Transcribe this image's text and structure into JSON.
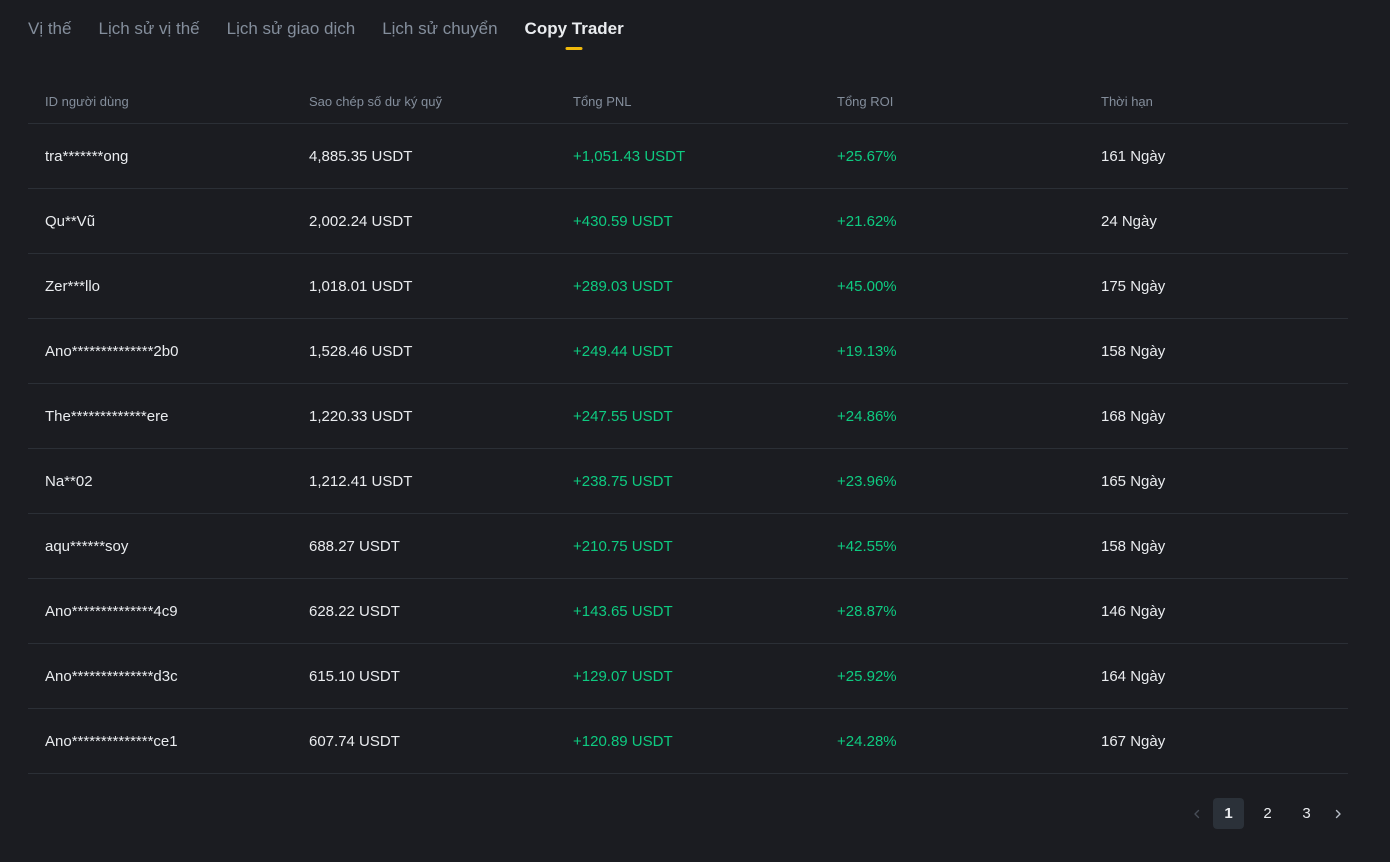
{
  "tabs": [
    {
      "label": "Vị thế"
    },
    {
      "label": "Lịch sử vị thế"
    },
    {
      "label": "Lịch sử giao dịch"
    },
    {
      "label": "Lịch sử chuyển"
    },
    {
      "label": "Copy Trader"
    }
  ],
  "active_tab": "Copy Trader",
  "table": {
    "headers": [
      "ID người dùng",
      "Sao chép số dư ký quỹ",
      "Tổng PNL",
      "Tổng ROI",
      "Thời hạn"
    ],
    "rows": [
      {
        "user": "tra*******ong",
        "margin": "4,885.35 USDT",
        "pnl": "+1,051.43 USDT",
        "roi": "+25.67%",
        "duration": "161 Ngày"
      },
      {
        "user": "Qu**Vũ",
        "margin": "2,002.24 USDT",
        "pnl": "+430.59 USDT",
        "roi": "+21.62%",
        "duration": "24 Ngày"
      },
      {
        "user": "Zer***llo",
        "margin": "1,018.01 USDT",
        "pnl": "+289.03 USDT",
        "roi": "+45.00%",
        "duration": "175 Ngày"
      },
      {
        "user": "Ano**************2b0",
        "margin": "1,528.46 USDT",
        "pnl": "+249.44 USDT",
        "roi": "+19.13%",
        "duration": "158 Ngày"
      },
      {
        "user": "The*************ere",
        "margin": "1,220.33 USDT",
        "pnl": "+247.55 USDT",
        "roi": "+24.86%",
        "duration": "168 Ngày"
      },
      {
        "user": "Na**02",
        "margin": "1,212.41 USDT",
        "pnl": "+238.75 USDT",
        "roi": "+23.96%",
        "duration": "165 Ngày"
      },
      {
        "user": "aqu******soy",
        "margin": "688.27 USDT",
        "pnl": "+210.75 USDT",
        "roi": "+42.55%",
        "duration": "158 Ngày"
      },
      {
        "user": "Ano**************4c9",
        "margin": "628.22 USDT",
        "pnl": "+143.65 USDT",
        "roi": "+28.87%",
        "duration": "146 Ngày"
      },
      {
        "user": "Ano**************d3c",
        "margin": "615.10 USDT",
        "pnl": "+129.07 USDT",
        "roi": "+25.92%",
        "duration": "164 Ngày"
      },
      {
        "user": "Ano**************ce1",
        "margin": "607.74 USDT",
        "pnl": "+120.89 USDT",
        "roi": "+24.28%",
        "duration": "167 Ngày"
      }
    ]
  },
  "pagination": {
    "pages": [
      "1",
      "2",
      "3"
    ],
    "current": "1",
    "prev_icon": "chevron-left-icon",
    "next_icon": "chevron-right-icon"
  },
  "colors": {
    "background": "#1b1c21",
    "positive": "#0ecb81",
    "accent": "#f0b90b",
    "muted": "#848e9c"
  }
}
